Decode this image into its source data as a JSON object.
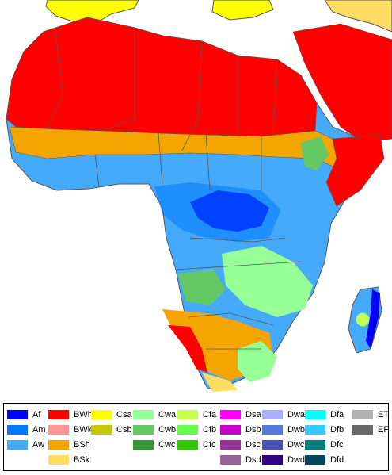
{
  "map": {
    "sea_color": "#ffffff",
    "border_color": "#555555"
  },
  "legend": {
    "columns": [
      [
        {
          "code": "Af",
          "color": "#0000fe"
        },
        {
          "code": "Am",
          "color": "#0078ff"
        },
        {
          "code": "Aw",
          "color": "#46aafa"
        }
      ],
      [
        {
          "code": "BWh",
          "color": "#ff0000"
        },
        {
          "code": "BWk",
          "color": "#ff9696"
        },
        {
          "code": "BSh",
          "color": "#f5a500"
        },
        {
          "code": "BSk",
          "color": "#ffdc64"
        }
      ],
      [
        {
          "code": "Csa",
          "color": "#ffff00"
        },
        {
          "code": "Csb",
          "color": "#c8c800"
        }
      ],
      [
        {
          "code": "Cwa",
          "color": "#96ff96"
        },
        {
          "code": "Cwb",
          "color": "#64c864"
        },
        {
          "code": "Cwc",
          "color": "#329632"
        }
      ],
      [
        {
          "code": "Cfa",
          "color": "#c8ff50"
        },
        {
          "code": "Cfb",
          "color": "#64ff50"
        },
        {
          "code": "Cfc",
          "color": "#32c800"
        }
      ],
      [
        {
          "code": "Dsa",
          "color": "#ff00ff"
        },
        {
          "code": "Dsb",
          "color": "#c800c8"
        },
        {
          "code": "Dsc",
          "color": "#963296"
        },
        {
          "code": "Dsd",
          "color": "#966496"
        }
      ],
      [
        {
          "code": "Dwa",
          "color": "#aaafff"
        },
        {
          "code": "Dwb",
          "color": "#5a78dc"
        },
        {
          "code": "Dwc",
          "color": "#4b50b4"
        },
        {
          "code": "Dwd",
          "color": "#320087"
        }
      ],
      [
        {
          "code": "Dfa",
          "color": "#00ffff"
        },
        {
          "code": "Dfb",
          "color": "#37c8ff"
        },
        {
          "code": "Dfc",
          "color": "#007d7d"
        },
        {
          "code": "Dfd",
          "color": "#00465f"
        }
      ],
      [
        {
          "code": "ET",
          "color": "#b2b2b2"
        },
        {
          "code": "EF",
          "color": "#686868"
        }
      ]
    ]
  }
}
